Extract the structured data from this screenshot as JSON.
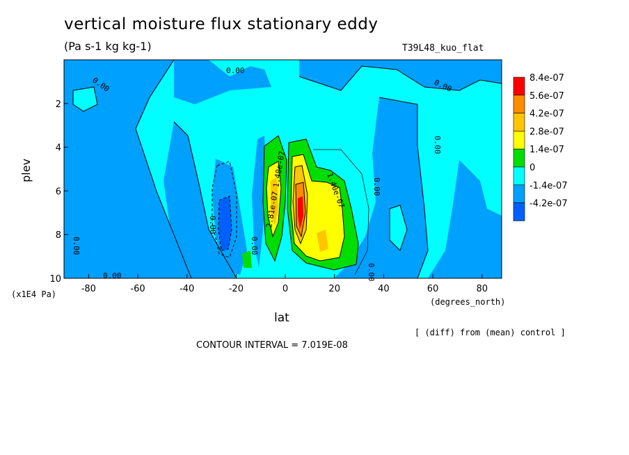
{
  "header": {
    "title": "vertical moisture flux stationary eddy",
    "units": "(Pa s-1 kg kg-1)",
    "run_name": "T39L48_kuo_flat"
  },
  "footer": {
    "diff_note": "[ (diff) from (mean) control ]",
    "contour_interval": "CONTOUR INTERVAL = 7.019E-08"
  },
  "chart_data": {
    "type": "heatmap",
    "title": "vertical moisture flux stationary eddy",
    "subtitle": "(Pa s-1 kg kg-1)",
    "xlabel": "lat",
    "x_units": "(degrees_north)",
    "ylabel": "plev",
    "y_units": "(x1E4 Pa)",
    "xlim": [
      -90,
      88
    ],
    "ylim": [
      10,
      0
    ],
    "x_ticks": [
      -80,
      -60,
      -40,
      -20,
      0,
      20,
      40,
      60,
      80
    ],
    "x_tick_labels": [
      "-80",
      "-60",
      "-40",
      "-20",
      "0",
      "20",
      "40",
      "60",
      "80"
    ],
    "y_ticks": [
      2,
      4,
      6,
      8,
      10
    ],
    "y_tick_labels": [
      "2",
      "4",
      "6",
      "8",
      "10"
    ],
    "levels": [
      -4.2e-07,
      -1.4e-07,
      0,
      1.4e-07,
      2.8e-07,
      4.2e-07,
      5.6e-07,
      8.4e-07
    ],
    "legend": {
      "placement": "right",
      "entries": [
        {
          "label": "8.4e-07",
          "color": "#ff0000"
        },
        {
          "label": "5.6e-07",
          "color": "#ff8c00"
        },
        {
          "label": "4.2e-07",
          "color": "#ffc600"
        },
        {
          "label": "2.8e-07",
          "color": "#ffff00"
        },
        {
          "label": "1.4e-07",
          "color": "#00dd00"
        },
        {
          "label": "0",
          "color": "#00ffff"
        },
        {
          "label": "-1.4e-07",
          "color": "#00a0ff"
        },
        {
          "label": "-4.2e-07",
          "color": "#0060ff"
        }
      ]
    },
    "contour_labels": [
      "0.00",
      "0.00",
      "0.00",
      "0.00",
      "0.00",
      "0.00",
      "0.00",
      "0.00",
      "0.00",
      "0.00",
      "1.40e-07",
      "2.81e-07",
      "1.40e-07"
    ],
    "contour_interval": 7.019e-08,
    "features": [
      {
        "lat": -24,
        "plev": 7.2,
        "value": -4.2e-07
      },
      {
        "lat": -5,
        "plev": 6.8,
        "value": 3.5e-07
      },
      {
        "lat": 7,
        "plev": 7.0,
        "value": 8.4e-07
      },
      {
        "lat": 15,
        "plev": 8.2,
        "value": 3.5e-07
      },
      {
        "lat": 20,
        "plev": 6.0,
        "value": 2e-07
      }
    ]
  }
}
